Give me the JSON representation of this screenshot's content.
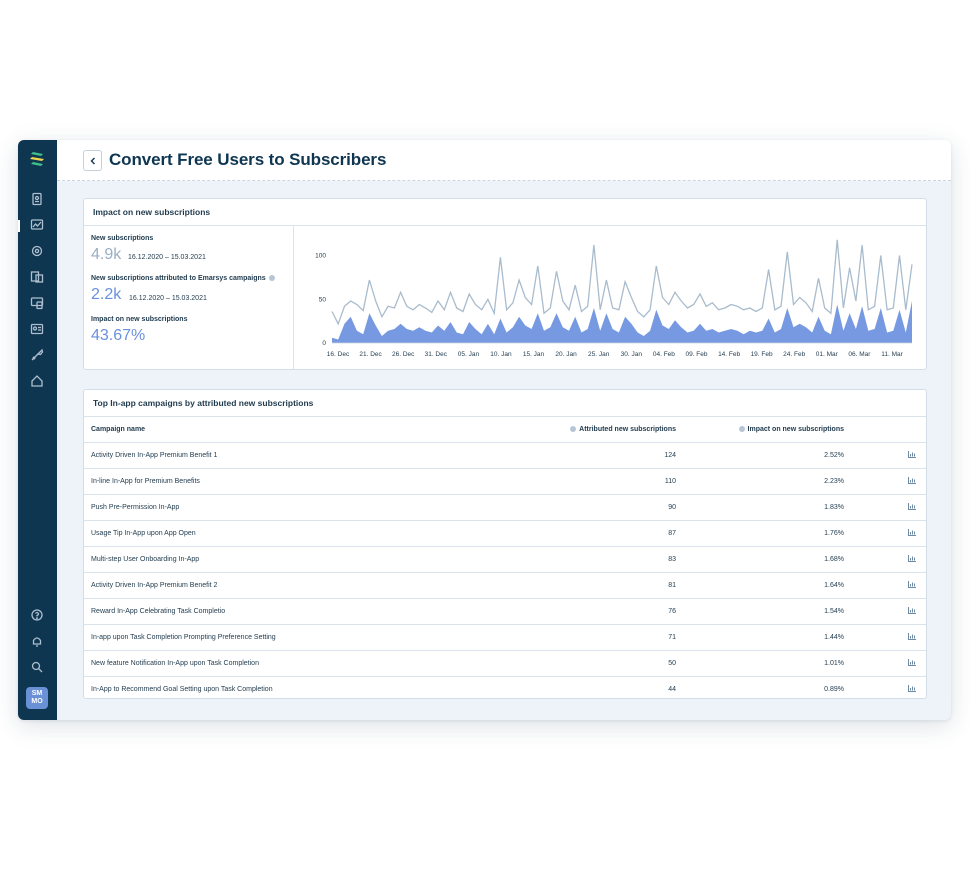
{
  "page": {
    "title": "Convert Free Users to Subscribers"
  },
  "user": {
    "initials_line1": "SM",
    "initials_line2": "MO"
  },
  "sidebar": {
    "top_icons": [
      "report-icon",
      "analytics-icon",
      "settings-wheel-icon",
      "content-icon",
      "channels-icon",
      "contacts-icon",
      "tools-icon",
      "automation-icon"
    ],
    "bottom_icons": [
      "help-icon",
      "notifications-icon",
      "search-icon"
    ]
  },
  "impact": {
    "title": "Impact on new subscriptions",
    "new_subs_label": "New subscriptions",
    "new_subs_value": "4.9k",
    "new_subs_range": "16.12.2020 – 15.03.2021",
    "attributed_label": "New subscriptions attributed to Emarsys campaigns",
    "attributed_value": "2.2k",
    "attributed_range": "16.12.2020 – 15.03.2021",
    "impact_label": "Impact on new subscriptions",
    "impact_value": "43.67%"
  },
  "chart_data": {
    "type": "area",
    "title": "",
    "xlabel": "",
    "ylabel": "",
    "ylim": [
      0,
      120
    ],
    "yticks": [
      0,
      50,
      100
    ],
    "x_tick_labels": [
      "16. Dec",
      "21. Dec",
      "26. Dec",
      "31. Dec",
      "05. Jan",
      "10. Jan",
      "15. Jan",
      "20. Jan",
      "25. Jan",
      "30. Jan",
      "04. Feb",
      "09. Feb",
      "14. Feb",
      "19. Feb",
      "24. Feb",
      "01. Mar",
      "06. Mar",
      "11. Mar"
    ],
    "series": [
      {
        "name": "",
        "color": "#a9bccd",
        "values": [
          36,
          22,
          42,
          48,
          44,
          37,
          72,
          48,
          30,
          42,
          40,
          58,
          42,
          38,
          44,
          40,
          35,
          48,
          38,
          58,
          40,
          36,
          56,
          44,
          38,
          50,
          34,
          98,
          38,
          46,
          72,
          52,
          44,
          88,
          34,
          40,
          82,
          48,
          38,
          66,
          36,
          42,
          112,
          38,
          72,
          40,
          38,
          70,
          52,
          36,
          30,
          38,
          88,
          52,
          44,
          58,
          48,
          40,
          44,
          56,
          42,
          46,
          38,
          40,
          44,
          42,
          38,
          40,
          36,
          40,
          84,
          38,
          42,
          104,
          44,
          52,
          46,
          36,
          74,
          40,
          34,
          118,
          40,
          86,
          48,
          112,
          38,
          42,
          100,
          38,
          40,
          100,
          38,
          90
        ]
      },
      {
        "name": "",
        "color": "#6a90de",
        "values": [
          6,
          4,
          22,
          30,
          14,
          10,
          34,
          20,
          8,
          14,
          16,
          22,
          16,
          14,
          18,
          14,
          12,
          20,
          14,
          24,
          12,
          10,
          24,
          16,
          10,
          22,
          10,
          28,
          12,
          18,
          30,
          20,
          16,
          34,
          14,
          18,
          34,
          18,
          14,
          30,
          12,
          16,
          40,
          14,
          34,
          16,
          12,
          30,
          22,
          12,
          8,
          14,
          38,
          20,
          16,
          26,
          18,
          12,
          14,
          22,
          14,
          16,
          12,
          14,
          16,
          14,
          10,
          14,
          12,
          14,
          28,
          12,
          16,
          40,
          18,
          22,
          18,
          12,
          30,
          14,
          10,
          44,
          14,
          34,
          16,
          42,
          14,
          16,
          40,
          12,
          14,
          38,
          12,
          48
        ]
      }
    ]
  },
  "table": {
    "title": "Top In-app campaigns by attributed new subscriptions",
    "columns": {
      "name": "Campaign name",
      "attributed": "Attributed new subscriptions",
      "impact": "Impact on new subscriptions"
    },
    "rows": [
      {
        "name": "Activity Driven In-App Premium Benefit 1",
        "attributed": "124",
        "impact": "2.52%"
      },
      {
        "name": "In-line In-App for Premium Benefits",
        "attributed": "110",
        "impact": "2.23%"
      },
      {
        "name": "Push Pre-Permission In-App",
        "attributed": "90",
        "impact": "1.83%"
      },
      {
        "name": "Usage Tip In-App upon App Open",
        "attributed": "87",
        "impact": "1.76%"
      },
      {
        "name": "Multi-step User Onboarding In-App",
        "attributed": "83",
        "impact": "1.68%"
      },
      {
        "name": "Activity Driven In-App Premium Benefit 2",
        "attributed": "81",
        "impact": "1.64%"
      },
      {
        "name": "Reward In-App Celebrating Task Completio",
        "attributed": "76",
        "impact": "1.54%"
      },
      {
        "name": "In-app upon Task Completion Prompting Preference Setting",
        "attributed": "71",
        "impact": "1.44%"
      },
      {
        "name": "New feature Notification In-App upon Task Completion",
        "attributed": "50",
        "impact": "1.01%"
      },
      {
        "name": "In-App to Recommend Goal Setting upon Task Completion",
        "attributed": "44",
        "impact": "0.89%"
      }
    ]
  },
  "colors": {
    "sidebar": "#0f3651",
    "accent": "#6a90de",
    "muted_value": "#9aaec4",
    "background": "#eef3f9"
  }
}
